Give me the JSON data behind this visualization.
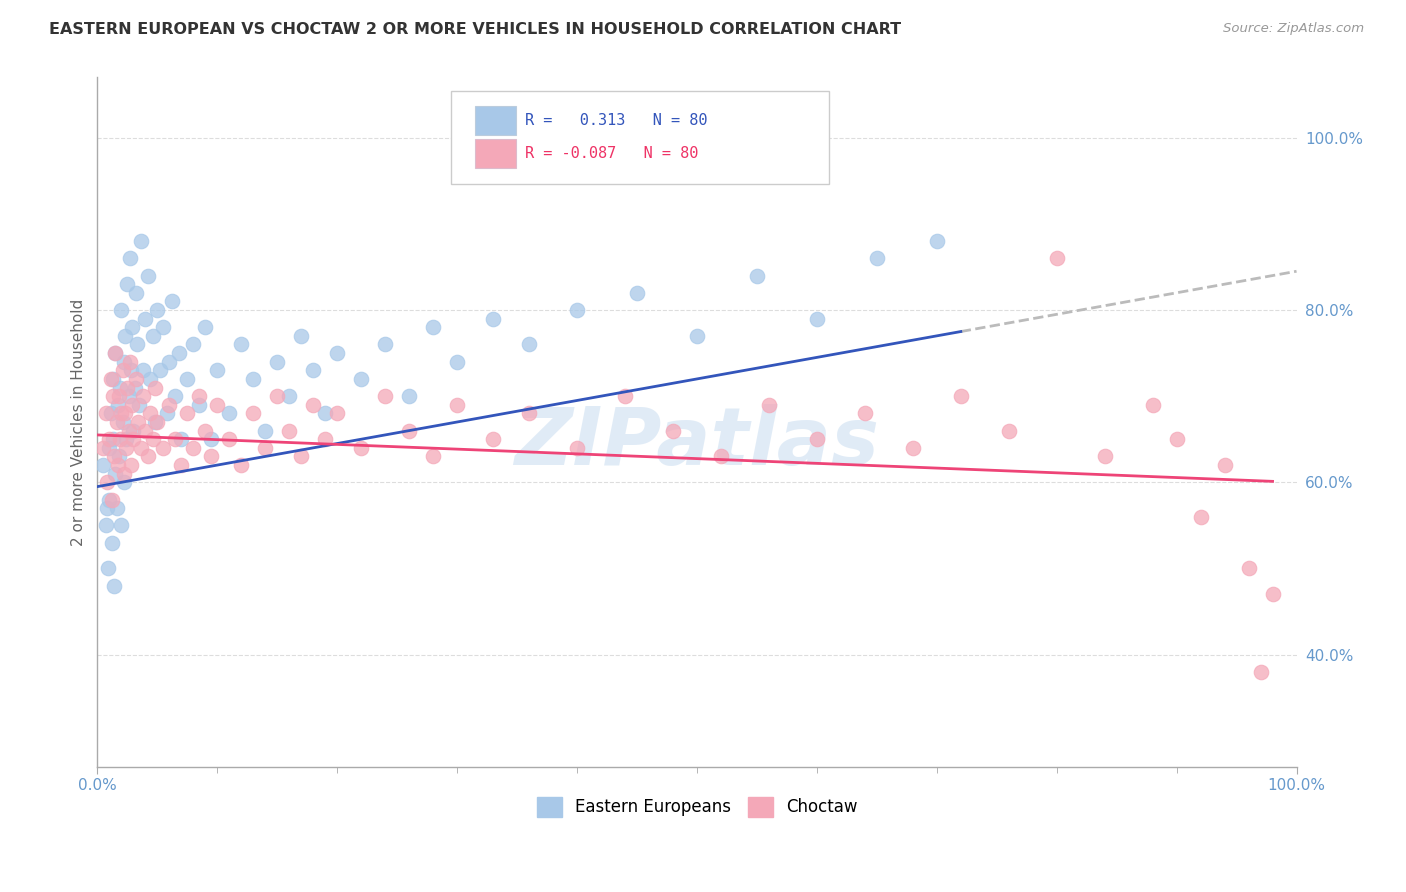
{
  "title": "EASTERN EUROPEAN VS CHOCTAW 2 OR MORE VEHICLES IN HOUSEHOLD CORRELATION CHART",
  "source": "Source: ZipAtlas.com",
  "ylabel": "2 or more Vehicles in Household",
  "xlim": [
    0.0,
    1.0
  ],
  "ylim": [
    0.27,
    1.07
  ],
  "yticks": [
    0.4,
    0.6,
    0.8,
    1.0
  ],
  "ytick_labels": [
    "40.0%",
    "60.0%",
    "80.0%",
    "100.0%"
  ],
  "xtick_labels": [
    "0.0%",
    "100.0%"
  ],
  "r_eastern": 0.313,
  "r_choctaw": -0.087,
  "n_eastern": 80,
  "n_choctaw": 80,
  "color_eastern": "#A8C8E8",
  "color_choctaw": "#F4A8B8",
  "line_color_eastern": "#3355BB",
  "line_color_choctaw": "#EE4477",
  "dash_color": "#BBBBBB",
  "watermark": "ZIPatlas",
  "background_color": "#FFFFFF",
  "legend_eastern": "Eastern Europeans",
  "legend_choctaw": "Choctaw",
  "grid_color": "#DDDDDD",
  "tick_color": "#6699CC",
  "spine_color": "#AAAAAA",
  "title_color": "#333333",
  "source_color": "#999999",
  "ylabel_color": "#666666",
  "eastern_x": [
    0.005,
    0.007,
    0.008,
    0.009,
    0.01,
    0.01,
    0.011,
    0.012,
    0.013,
    0.013,
    0.014,
    0.015,
    0.015,
    0.016,
    0.017,
    0.018,
    0.019,
    0.02,
    0.02,
    0.021,
    0.022,
    0.022,
    0.023,
    0.024,
    0.025,
    0.026,
    0.027,
    0.028,
    0.029,
    0.03,
    0.031,
    0.032,
    0.033,
    0.035,
    0.036,
    0.038,
    0.04,
    0.042,
    0.044,
    0.046,
    0.048,
    0.05,
    0.052,
    0.055,
    0.058,
    0.06,
    0.062,
    0.065,
    0.068,
    0.07,
    0.075,
    0.08,
    0.085,
    0.09,
    0.095,
    0.1,
    0.11,
    0.12,
    0.13,
    0.14,
    0.15,
    0.16,
    0.17,
    0.18,
    0.19,
    0.2,
    0.22,
    0.24,
    0.26,
    0.28,
    0.3,
    0.33,
    0.36,
    0.4,
    0.45,
    0.5,
    0.55,
    0.6,
    0.65,
    0.7
  ],
  "eastern_y": [
    0.62,
    0.55,
    0.57,
    0.5,
    0.64,
    0.58,
    0.68,
    0.53,
    0.72,
    0.65,
    0.48,
    0.61,
    0.75,
    0.57,
    0.69,
    0.63,
    0.71,
    0.55,
    0.8,
    0.67,
    0.74,
    0.6,
    0.77,
    0.65,
    0.83,
    0.7,
    0.86,
    0.73,
    0.78,
    0.66,
    0.71,
    0.82,
    0.76,
    0.69,
    0.88,
    0.73,
    0.79,
    0.84,
    0.72,
    0.77,
    0.67,
    0.8,
    0.73,
    0.78,
    0.68,
    0.74,
    0.81,
    0.7,
    0.75,
    0.65,
    0.72,
    0.76,
    0.69,
    0.78,
    0.65,
    0.73,
    0.68,
    0.76,
    0.72,
    0.66,
    0.74,
    0.7,
    0.77,
    0.73,
    0.68,
    0.75,
    0.72,
    0.76,
    0.7,
    0.78,
    0.74,
    0.79,
    0.76,
    0.8,
    0.82,
    0.77,
    0.84,
    0.79,
    0.86,
    0.88
  ],
  "choctaw_x": [
    0.005,
    0.007,
    0.008,
    0.01,
    0.011,
    0.012,
    0.013,
    0.014,
    0.015,
    0.016,
    0.017,
    0.018,
    0.019,
    0.02,
    0.021,
    0.022,
    0.023,
    0.024,
    0.025,
    0.026,
    0.027,
    0.028,
    0.029,
    0.03,
    0.032,
    0.034,
    0.036,
    0.038,
    0.04,
    0.042,
    0.044,
    0.046,
    0.048,
    0.05,
    0.055,
    0.06,
    0.065,
    0.07,
    0.075,
    0.08,
    0.085,
    0.09,
    0.095,
    0.1,
    0.11,
    0.12,
    0.13,
    0.14,
    0.15,
    0.16,
    0.17,
    0.18,
    0.19,
    0.2,
    0.22,
    0.24,
    0.26,
    0.28,
    0.3,
    0.33,
    0.36,
    0.4,
    0.44,
    0.48,
    0.52,
    0.56,
    0.6,
    0.64,
    0.68,
    0.72,
    0.76,
    0.8,
    0.84,
    0.88,
    0.9,
    0.92,
    0.94,
    0.96,
    0.97,
    0.98
  ],
  "choctaw_y": [
    0.64,
    0.68,
    0.6,
    0.65,
    0.72,
    0.58,
    0.7,
    0.63,
    0.75,
    0.67,
    0.62,
    0.7,
    0.65,
    0.68,
    0.73,
    0.61,
    0.68,
    0.64,
    0.71,
    0.66,
    0.74,
    0.62,
    0.69,
    0.65,
    0.72,
    0.67,
    0.64,
    0.7,
    0.66,
    0.63,
    0.68,
    0.65,
    0.71,
    0.67,
    0.64,
    0.69,
    0.65,
    0.62,
    0.68,
    0.64,
    0.7,
    0.66,
    0.63,
    0.69,
    0.65,
    0.62,
    0.68,
    0.64,
    0.7,
    0.66,
    0.63,
    0.69,
    0.65,
    0.68,
    0.64,
    0.7,
    0.66,
    0.63,
    0.69,
    0.65,
    0.68,
    0.64,
    0.7,
    0.66,
    0.63,
    0.69,
    0.65,
    0.68,
    0.64,
    0.7,
    0.66,
    0.86,
    0.63,
    0.69,
    0.65,
    0.56,
    0.62,
    0.5,
    0.38,
    0.47
  ]
}
